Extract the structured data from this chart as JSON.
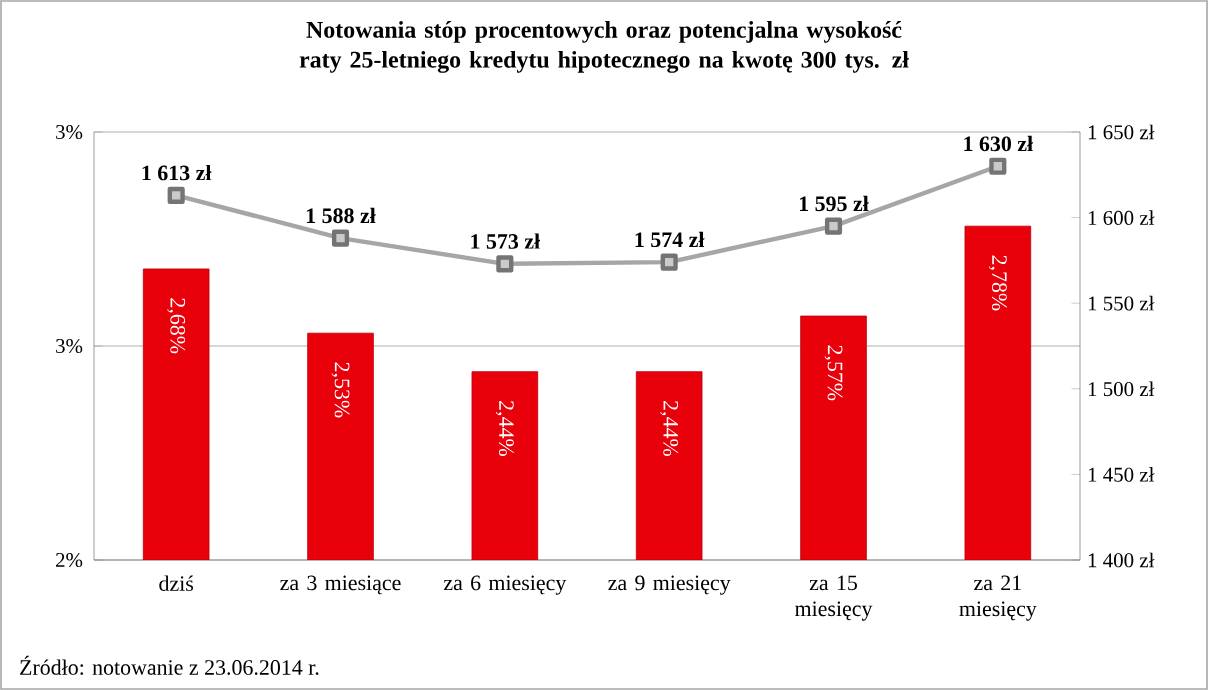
{
  "chart_data": {
    "type": "bar",
    "title": "Notowania stóp procentowych oraz potencjalna wysokość raty 25-letniego kredytu hipotecznego na kwotę 300 tys. zł",
    "categories": [
      "dziś",
      "za 3 miesiące",
      "za 6 miesięcy",
      "za 9 miesięcy",
      "za 15 miesięcy",
      "za 21 miesięcy"
    ],
    "series": [
      {
        "color": "#e8000b",
        "values": [
          2.68,
          2.53,
          2.44,
          2.44,
          2.57,
          2.78
        ],
        "value_labels": [
          "2,68%",
          "2,53%",
          "2,44%",
          "2,44%",
          "2,57%",
          "2,78%"
        ]
      },
      {
        "type": "line",
        "axis": "y2",
        "color": "#a6a6a6",
        "marker": "square",
        "values": [
          1613,
          1588,
          1573,
          1574,
          1595,
          1630
        ],
        "value_labels": [
          "1 613 zł",
          "1 588 zł",
          "1 573 zł",
          "1 574 zł",
          "1 595 zł",
          "1 630 zł"
        ]
      }
    ],
    "ylim": [
      2,
      3
    ],
    "yticks": [
      {
        "value": 2,
        "label": "2%"
      },
      {
        "value": 2.5,
        "label": "3%"
      },
      {
        "value": 3,
        "label": "3%"
      }
    ],
    "y2lim": [
      1400,
      1650
    ],
    "y2ticks": [
      {
        "value": 1400,
        "label": "1 400 zł"
      },
      {
        "value": 1450,
        "label": "1 450 zł"
      },
      {
        "value": 1500,
        "label": "1 500 zł"
      },
      {
        "value": 1550,
        "label": "1 550 zł"
      },
      {
        "value": 1600,
        "label": "1 600 zł"
      },
      {
        "value": 1650,
        "label": "1 650 zł"
      }
    ],
    "grid": "y",
    "annotations": [
      "Źródło: notowanie z 23.06.2014 r."
    ]
  }
}
